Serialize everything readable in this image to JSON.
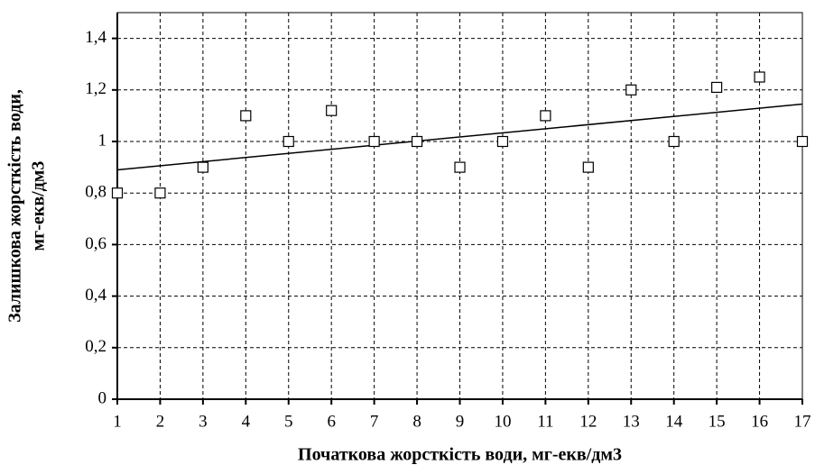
{
  "chart_data": {
    "type": "scatter",
    "xlabel": "Початкова жорсткість води, мг-екв/дм3",
    "ylabel": [
      "Залишкова жорсткість води,",
      "мг-екв/дм3"
    ],
    "x": [
      1,
      2,
      3,
      4,
      5,
      6,
      7,
      8,
      9,
      10,
      11,
      12,
      13,
      14,
      15,
      16,
      17
    ],
    "values": [
      0.8,
      0.8,
      0.9,
      1.1,
      1.0,
      1.12,
      1.0,
      1.0,
      0.9,
      1.0,
      1.1,
      0.9,
      1.2,
      1.0,
      1.21,
      1.25,
      1.0
    ],
    "trendline": {
      "x": [
        1,
        17
      ],
      "values": [
        0.89,
        1.145
      ]
    },
    "xlim": [
      1,
      17
    ],
    "xticks": [
      1,
      2,
      3,
      4,
      5,
      6,
      7,
      8,
      9,
      10,
      11,
      12,
      13,
      14,
      15,
      16,
      17
    ],
    "ylim": [
      0,
      1.5
    ],
    "yticks": [
      0,
      {
        "value": 0.2,
        "label": "0,2"
      },
      {
        "value": 0.4,
        "label": "0,4"
      },
      {
        "value": 0.6,
        "label": "0,6"
      },
      {
        "value": 0.8,
        "label": "0,8"
      },
      1,
      {
        "value": 1.2,
        "label": "1,2"
      },
      {
        "value": 1.4,
        "label": "1,4"
      }
    ],
    "grid": true,
    "color": "#000000",
    "marker_fill": "#ffffff"
  }
}
